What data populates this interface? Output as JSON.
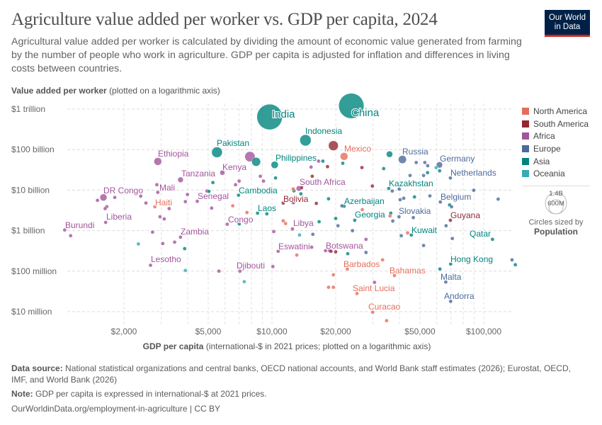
{
  "header": {
    "title": "Agriculture value added per worker vs. GDP per capita, 2024",
    "subtitle": "Agricultural value added per worker is calculated by dividing the amount of economic value generated from farming by the number of people who work in agriculture. GDP per capita is adjusted for inflation and differences in living costs between countries.",
    "logo_line1": "Our World",
    "logo_line2": "in Data"
  },
  "footer": {
    "source_label": "Data source:",
    "source_text": "National statistical organizations and central banks, OECD national accounts, and World Bank staff estimates (2026); Eurostat, OECD, IMF, and World Bank (2026)",
    "note_label": "Note:",
    "note_text": "GDP per capita is expressed in international-$ at 2021 prices.",
    "url": "OurWorldinData.org/employment-in-agriculture | CC BY"
  },
  "legend": {
    "regions": [
      {
        "name": "North America",
        "color": "#E56E5A"
      },
      {
        "name": "South America",
        "color": "#932834"
      },
      {
        "name": "Africa",
        "color": "#A2559C"
      },
      {
        "name": "Europe",
        "color": "#4C6A9C"
      },
      {
        "name": "Asia",
        "color": "#00847E"
      },
      {
        "name": "Oceania",
        "color": "#38AABA"
      }
    ],
    "size_big": "1.4B",
    "size_small": "600M",
    "size_caption": "Circles sized by",
    "size_variable": "Population"
  },
  "chart_data": {
    "type": "scatter",
    "title": "Agriculture value added per worker vs. GDP per capita, 2024",
    "xlabel_bold": "GDP per capita",
    "xlabel_rest": "(international-$ in 2021 prices; plotted on a logarithmic axis)",
    "ylabel_bold": "Value added per worker",
    "ylabel_rest": "(plotted on a logarithmic axis)",
    "x_scale": "log",
    "y_scale": "log",
    "xlim": [
      1050,
      140000
    ],
    "ylim": [
      5000000,
      1300000000000
    ],
    "grid": true,
    "legend_position": "right",
    "x_ticks": [
      {
        "value": 2000,
        "label": "$2,000"
      },
      {
        "value": 5000,
        "label": "$5,000"
      },
      {
        "value": 10000,
        "label": "$10,000"
      },
      {
        "value": 20000,
        "label": "$20,000"
      },
      {
        "value": 50000,
        "label": "$50,000"
      },
      {
        "value": 100000,
        "label": "$100,000"
      }
    ],
    "y_ticks": [
      {
        "value": 1000000000000.0,
        "label": "$1 trillion"
      },
      {
        "value": 100000000000.0,
        "label": "$100 billion"
      },
      {
        "value": 10000000000.0,
        "label": "$10 billion"
      },
      {
        "value": 1000000000.0,
        "label": "$1 billion"
      },
      {
        "value": 100000000.0,
        "label": "$100 million"
      },
      {
        "value": 10000000.0,
        "label": "$10 million"
      }
    ],
    "points": [
      {
        "label": "India",
        "region": "Asia",
        "gdp": 9750,
        "va": 640000000000,
        "pop": 1450
      },
      {
        "label": "China",
        "region": "Asia",
        "gdp": 23700,
        "va": 1200000000000,
        "pop": 1410
      },
      {
        "label": "Indonesia",
        "region": "Asia",
        "gdp": 14400,
        "va": 170000000000,
        "pop": 283
      },
      {
        "label": "Pakistan",
        "region": "Asia",
        "gdp": 5500,
        "va": 86000000000,
        "pop": 251
      },
      {
        "label": "Mexico",
        "region": "North America",
        "gdp": 21900,
        "va": 68000000000,
        "pop": 131
      },
      {
        "label": "Ethiopia",
        "region": "Africa",
        "gdp": 2890,
        "va": 51000000000,
        "pop": 132
      },
      {
        "label": "Philippines",
        "region": "Asia",
        "gdp": 10300,
        "va": 42000000000,
        "pop": 115
      },
      {
        "label": "Russia",
        "region": "Europe",
        "gdp": 41300,
        "va": 57000000000,
        "pop": 144
      },
      {
        "label": "Germany",
        "region": "Europe",
        "gdp": 61800,
        "va": 42000000000,
        "pop": 84
      },
      {
        "label": "Kenya",
        "region": "Africa",
        "gdp": 5830,
        "va": 27000000000,
        "pop": 56
      },
      {
        "label": "Tanzania",
        "region": "Africa",
        "gdp": 3700,
        "va": 18000000000,
        "pop": 69
      },
      {
        "label": "Netherlands",
        "region": "Europe",
        "gdp": 69600,
        "va": 20000000000
      },
      {
        "label": "South Africa",
        "region": "Africa",
        "gdp": 13400,
        "va": 11000000000,
        "pop": 64
      },
      {
        "label": "Kazakhstan",
        "region": "Asia",
        "gdp": 35600,
        "va": 11000000000
      },
      {
        "label": "DR Congo",
        "region": "Africa",
        "gdp": 1600,
        "va": 6600000000,
        "pop": 110
      },
      {
        "label": "Mali",
        "region": "Africa",
        "gdp": 2890,
        "va": 8800000000
      },
      {
        "label": "Cambodia",
        "region": "Asia",
        "gdp": 6950,
        "va": 7500000000
      },
      {
        "label": "Senegal",
        "region": "Africa",
        "gdp": 4440,
        "va": 5300000000
      },
      {
        "label": "Belgium",
        "region": "Europe",
        "gdp": 62400,
        "va": 5100000000
      },
      {
        "label": "Bolivia",
        "region": "South America",
        "gdp": 11300,
        "va": 4800000000
      },
      {
        "label": "Azerbaijan",
        "region": "Asia",
        "gdp": 21900,
        "va": 4000000000
      },
      {
        "label": "Haiti",
        "region": "North America",
        "gdp": 2800,
        "va": 3900000000
      },
      {
        "label": "Laos",
        "region": "Asia",
        "gdp": 9460,
        "va": 2600000000
      },
      {
        "label": "Slovakia",
        "region": "Europe",
        "gdp": 39800,
        "va": 2200000000
      },
      {
        "label": "Georgia",
        "region": "Asia",
        "gdp": 24600,
        "va": 1800000000
      },
      {
        "label": "Guyana",
        "region": "South America",
        "gdp": 69600,
        "va": 1800000000
      },
      {
        "label": "Liberia",
        "region": "Africa",
        "gdp": 1640,
        "va": 1600000000
      },
      {
        "label": "Congo",
        "region": "Africa",
        "gdp": 6150,
        "va": 1440000000
      },
      {
        "label": "Libya",
        "region": "Africa",
        "gdp": 12500,
        "va": 1100000000
      },
      {
        "label": "Burundi",
        "region": "Africa",
        "gdp": 1050,
        "va": 1040000000
      },
      {
        "label": "Zambia",
        "region": "Africa",
        "gdp": 3700,
        "va": 690000000
      },
      {
        "label": "Kuwait",
        "region": "Asia",
        "gdp": 45500,
        "va": 780000000
      },
      {
        "label": "Qatar",
        "region": "Asia",
        "gdp": 110000,
        "va": 610000000
      },
      {
        "label": "Eswatini",
        "region": "Africa",
        "gdp": 10700,
        "va": 310000000
      },
      {
        "label": "Botswana",
        "region": "Africa",
        "gdp": 18700,
        "va": 320000000
      },
      {
        "label": "Lesotho",
        "region": "Africa",
        "gdp": 2670,
        "va": 140000000
      },
      {
        "label": "Hong Kong",
        "region": "Asia",
        "gdp": 69800,
        "va": 150000000
      },
      {
        "label": "Djibouti",
        "region": "Africa",
        "gdp": 10100,
        "va": 130000000
      },
      {
        "label": "Barbados",
        "region": "North America",
        "gdp": 22700,
        "va": 113000000
      },
      {
        "label": "Bahamas",
        "region": "North America",
        "gdp": 37900,
        "va": 78000000
      },
      {
        "label": "Malta",
        "region": "Europe",
        "gdp": 66200,
        "va": 54000000
      },
      {
        "label": "Saint Lucia",
        "region": "North America",
        "gdp": 25200,
        "va": 28000000
      },
      {
        "label": "Andorra",
        "region": "Europe",
        "gdp": 69800,
        "va": 18000000
      },
      {
        "label": "Curacao",
        "region": "North America",
        "gdp": 29900,
        "va": 9700000
      },
      {
        "region": "Africa",
        "gdp": 7870,
        "va": 67000000000,
        "pop": 232
      },
      {
        "region": "Asia",
        "gdp": 8420,
        "va": 50000000000,
        "pop": 173
      },
      {
        "region": "South America",
        "gdp": 19500,
        "va": 125000000000,
        "pop": 212
      },
      {
        "region": "Asia",
        "gdp": 35900,
        "va": 77000000000,
        "pop": 90
      },
      {
        "region": "Africa",
        "gdp": 1500,
        "va": 5600000000
      },
      {
        "region": "Africa",
        "gdp": 1660,
        "va": 3900000000
      },
      {
        "region": "Africa",
        "gdp": 1630,
        "va": 3500000000
      },
      {
        "region": "Africa",
        "gdp": 1810,
        "va": 6600000000
      },
      {
        "region": "Africa",
        "gdp": 2400,
        "va": 7100000000
      },
      {
        "region": "Africa",
        "gdp": 2540,
        "va": 4800000000
      },
      {
        "region": "Africa",
        "gdp": 2860,
        "va": 13600000000
      },
      {
        "region": "Africa",
        "gdp": 3270,
        "va": 3500000000
      },
      {
        "region": "Africa",
        "gdp": 3990,
        "va": 7800000000
      },
      {
        "region": "Africa",
        "gdp": 3900,
        "va": 5200000000
      },
      {
        "region": "Africa",
        "gdp": 5190,
        "va": 3600000000
      },
      {
        "region": "Africa",
        "gdp": 4930,
        "va": 9500000000
      },
      {
        "region": "Africa",
        "gdp": 2960,
        "va": 2200000000
      },
      {
        "region": "Africa",
        "gdp": 3100,
        "va": 1950000000
      },
      {
        "region": "Africa",
        "gdp": 2730,
        "va": 920000000
      },
      {
        "region": "Africa",
        "gdp": 3050,
        "va": 480000000
      },
      {
        "region": "Africa",
        "gdp": 3470,
        "va": 520000000
      },
      {
        "region": "Africa",
        "gdp": 1120,
        "va": 750000000
      },
      {
        "region": "Africa",
        "gdp": 6730,
        "va": 13600000000
      },
      {
        "region": "Africa",
        "gdp": 7000,
        "va": 16700000000
      },
      {
        "region": "Africa",
        "gdp": 8810,
        "va": 22000000000
      },
      {
        "region": "Africa",
        "gdp": 9120,
        "va": 16700000000
      },
      {
        "region": "Africa",
        "gdp": 12700,
        "va": 5000000000
      },
      {
        "region": "Africa",
        "gdp": 10200,
        "va": 950000000
      },
      {
        "region": "Africa",
        "gdp": 15300,
        "va": 37000000000
      },
      {
        "region": "Africa",
        "gdp": 16600,
        "va": 52000000000
      },
      {
        "region": "Africa",
        "gdp": 17900,
        "va": 320000000
      },
      {
        "region": "Africa",
        "gdp": 15400,
        "va": 390000000
      },
      {
        "region": "Africa",
        "gdp": 27800,
        "va": 610000000
      },
      {
        "region": "Africa",
        "gdp": 12600,
        "va": 4900000000
      },
      {
        "region": "Africa",
        "gdp": 5620,
        "va": 100000000
      },
      {
        "region": "Africa",
        "gdp": 7060,
        "va": 100000000
      },
      {
        "region": "Africa",
        "gdp": 30500,
        "va": 53000000
      },
      {
        "region": "Asia",
        "gdp": 5260,
        "va": 15400000000
      },
      {
        "region": "Asia",
        "gdp": 5040,
        "va": 9300000000
      },
      {
        "region": "Asia",
        "gdp": 8550,
        "va": 2700000000
      },
      {
        "region": "Asia",
        "gdp": 10400,
        "va": 20000000000
      },
      {
        "region": "Asia",
        "gdp": 12700,
        "va": 9600000000
      },
      {
        "region": "Asia",
        "gdp": 13700,
        "va": 8100000000
      },
      {
        "region": "Asia",
        "gdp": 7010,
        "va": 1470000000
      },
      {
        "region": "Asia",
        "gdp": 3870,
        "va": 360000000
      },
      {
        "region": "Asia",
        "gdp": 21600,
        "va": 46000000000
      },
      {
        "region": "Asia",
        "gdp": 33700,
        "va": 34000000000
      },
      {
        "region": "Asia",
        "gdp": 54300,
        "va": 27000000000
      },
      {
        "region": "Asia",
        "gdp": 61900,
        "va": 30000000000
      },
      {
        "region": "Asia",
        "gdp": 18500,
        "va": 6100000000
      },
      {
        "region": "Asia",
        "gdp": 20000,
        "va": 2000000000
      },
      {
        "region": "Asia",
        "gdp": 16700,
        "va": 1660000000
      },
      {
        "region": "Asia",
        "gdp": 36400,
        "va": 2700000000
      },
      {
        "region": "Asia",
        "gdp": 47100,
        "va": 6800000000
      },
      {
        "region": "Asia",
        "gdp": 69000,
        "va": 4300000000
      },
      {
        "region": "Asia",
        "gdp": 22800,
        "va": 270000000
      },
      {
        "region": "Asia",
        "gdp": 17400,
        "va": 52000000000
      },
      {
        "region": "Asia",
        "gdp": 62100,
        "va": 113000000
      },
      {
        "region": "Asia",
        "gdp": 141000,
        "va": 144000000
      },
      {
        "region": "Oceania",
        "gdp": 2340,
        "va": 470000000
      },
      {
        "region": "Oceania",
        "gdp": 13500,
        "va": 780000000
      },
      {
        "region": "Oceania",
        "gdp": 59600,
        "va": 36000000000
      },
      {
        "region": "Oceania",
        "gdp": 3900,
        "va": 104000000
      },
      {
        "region": "Oceania",
        "gdp": 7400,
        "va": 55000000
      },
      {
        "region": "North America",
        "gdp": 6530,
        "va": 4100000000
      },
      {
        "region": "North America",
        "gdp": 7620,
        "va": 2800000000
      },
      {
        "region": "North America",
        "gdp": 11300,
        "va": 1750000000
      },
      {
        "region": "North America",
        "gdp": 11600,
        "va": 1500000000
      },
      {
        "region": "North America",
        "gdp": 12600,
        "va": 10700000000
      },
      {
        "region": "North America",
        "gdp": 26700,
        "va": 3300000000
      },
      {
        "region": "North America",
        "gdp": 36100,
        "va": 2300000000
      },
      {
        "region": "North America",
        "gdp": 43700,
        "va": 880000000
      },
      {
        "region": "North America",
        "gdp": 13100,
        "va": 250000000
      },
      {
        "region": "North America",
        "gdp": 33300,
        "va": 190000000
      },
      {
        "region": "North America",
        "gdp": 19500,
        "va": 81000000
      },
      {
        "region": "North America",
        "gdp": 18500,
        "va": 40000000
      },
      {
        "region": "North America",
        "gdp": 19500,
        "va": 40000000
      },
      {
        "region": "North America",
        "gdp": 34800,
        "va": 6000000
      },
      {
        "region": "South America",
        "gdp": 18300,
        "va": 38000000000
      },
      {
        "region": "South America",
        "gdp": 26600,
        "va": 36000000000
      },
      {
        "region": "South America",
        "gdp": 15500,
        "va": 22000000000
      },
      {
        "region": "South America",
        "gdp": 29800,
        "va": 12600000000
      },
      {
        "region": "South America",
        "gdp": 16200,
        "va": 4700000000
      },
      {
        "region": "South America",
        "gdp": 19000,
        "va": 310000000
      },
      {
        "region": "South America",
        "gdp": 20000,
        "va": 300000000
      },
      {
        "region": "South America",
        "gdp": 13800,
        "va": 11500000000
      },
      {
        "region": "Europe",
        "gdp": 48000,
        "va": 48000000000
      },
      {
        "region": "Europe",
        "gdp": 52700,
        "va": 48000000000
      },
      {
        "region": "Europe",
        "gdp": 54400,
        "va": 40000000000
      },
      {
        "region": "Europe",
        "gdp": 44900,
        "va": 23000000000
      },
      {
        "region": "Europe",
        "gdp": 52000,
        "va": 23000000000
      },
      {
        "region": "Europe",
        "gdp": 37000,
        "va": 9500000000
      },
      {
        "region": "Europe",
        "gdp": 39900,
        "va": 10600000000
      },
      {
        "region": "Europe",
        "gdp": 40300,
        "va": 5800000000
      },
      {
        "region": "Europe",
        "gdp": 41900,
        "va": 6300000000
      },
      {
        "region": "Europe",
        "gdp": 55700,
        "va": 7200000000
      },
      {
        "region": "Europe",
        "gdp": 70500,
        "va": 3900000000
      },
      {
        "region": "Europe",
        "gdp": 89700,
        "va": 9900000000
      },
      {
        "region": "Europe",
        "gdp": 117000,
        "va": 6000000000
      },
      {
        "region": "Europe",
        "gdp": 46500,
        "va": 2100000000
      },
      {
        "region": "Europe",
        "gdp": 37200,
        "va": 1730000000
      },
      {
        "region": "Europe",
        "gdp": 66400,
        "va": 1320000000
      },
      {
        "region": "Europe",
        "gdp": 40800,
        "va": 750000000
      },
      {
        "region": "Europe",
        "gdp": 71100,
        "va": 640000000
      },
      {
        "region": "Europe",
        "gdp": 52000,
        "va": 430000000
      },
      {
        "region": "Europe",
        "gdp": 27800,
        "va": 290000000
      },
      {
        "region": "Europe",
        "gdp": 21400,
        "va": 4100000000
      },
      {
        "region": "Europe",
        "gdp": 24000,
        "va": 1000000000
      },
      {
        "region": "Europe",
        "gdp": 20500,
        "va": 1320000000
      },
      {
        "region": "Europe",
        "gdp": 15600,
        "va": 810000000
      },
      {
        "region": "Europe",
        "gdp": 136000,
        "va": 190000000
      }
    ]
  }
}
